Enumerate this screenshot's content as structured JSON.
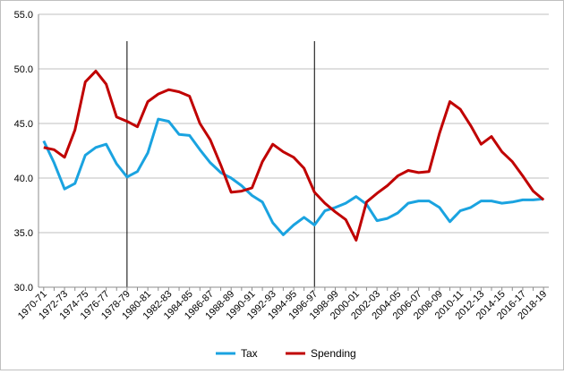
{
  "chart_data": {
    "type": "line",
    "title": "",
    "xlabel": "",
    "ylabel": "",
    "ylim": [
      30.0,
      55.0
    ],
    "yticks": [
      "30.0",
      "35.0",
      "40.0",
      "45.0",
      "50.0",
      "55.0"
    ],
    "grid": "horizontal",
    "legend_position": "bottom",
    "categories": [
      "1970-71",
      "1971-72",
      "1972-73",
      "1973-74",
      "1974-75",
      "1975-76",
      "1976-77",
      "1977-78",
      "1978-79",
      "1979-80",
      "1980-81",
      "1981-82",
      "1982-83",
      "1983-84",
      "1984-85",
      "1985-86",
      "1986-87",
      "1987-88",
      "1988-89",
      "1989-90",
      "1990-91",
      "1991-92",
      "1992-93",
      "1993-94",
      "1994-95",
      "1995-96",
      "1996-97",
      "1997-98",
      "1998-99",
      "1999-00",
      "2000-01",
      "2001-02",
      "2002-03",
      "2003-04",
      "2004-05",
      "2005-06",
      "2006-07",
      "2007-08",
      "2008-09",
      "2009-10",
      "2010-11",
      "2011-12",
      "2012-13",
      "2013-14",
      "2014-15",
      "2015-16",
      "2016-17",
      "2017-18",
      "2018-19"
    ],
    "series": [
      {
        "name": "Tax",
        "color": "#1aa3e0",
        "values": [
          43.4,
          41.4,
          39.0,
          39.5,
          42.1,
          42.8,
          43.1,
          41.3,
          40.1,
          40.6,
          42.3,
          45.4,
          45.2,
          44.0,
          43.9,
          42.6,
          41.4,
          40.5,
          40.0,
          39.3,
          38.4,
          37.8,
          35.9,
          34.8,
          35.7,
          36.4,
          35.7,
          37.0,
          37.3,
          37.7,
          38.3,
          37.6,
          36.1,
          36.3,
          36.8,
          37.7,
          37.9,
          37.9,
          37.3,
          36.0,
          37.0,
          37.3,
          37.9,
          37.9,
          37.7,
          37.8,
          38.0,
          38.0,
          38.1
        ]
      },
      {
        "name": "Spending",
        "color": "#c00000",
        "values": [
          42.8,
          42.6,
          41.9,
          44.4,
          48.8,
          49.8,
          48.6,
          45.6,
          45.2,
          44.7,
          47.0,
          47.7,
          48.1,
          47.9,
          47.5,
          45.0,
          43.5,
          41.2,
          38.7,
          38.8,
          39.1,
          41.5,
          43.1,
          42.4,
          41.9,
          40.9,
          38.7,
          37.7,
          36.9,
          36.2,
          34.3,
          37.8,
          38.6,
          39.3,
          40.2,
          40.7,
          40.5,
          40.6,
          44.1,
          47.0,
          46.3,
          44.8,
          43.1,
          43.8,
          42.4,
          41.5,
          40.2,
          38.8,
          38.0
        ]
      }
    ],
    "vertical_markers_at": [
      "1978-79",
      "1996-97"
    ],
    "x_tick_labels": [
      "1970-71",
      "1972-73",
      "1974-75",
      "1976-77",
      "1978-79",
      "1980-81",
      "1982-83",
      "1984-85",
      "1986-87",
      "1988-89",
      "1990-91",
      "1992-93",
      "1994-95",
      "1996-97",
      "1998-99",
      "2000-01",
      "2002-03",
      "2004-05",
      "2006-07",
      "2008-09",
      "2010-11",
      "2012-13",
      "2014-15",
      "2016-17",
      "2018-19"
    ]
  }
}
